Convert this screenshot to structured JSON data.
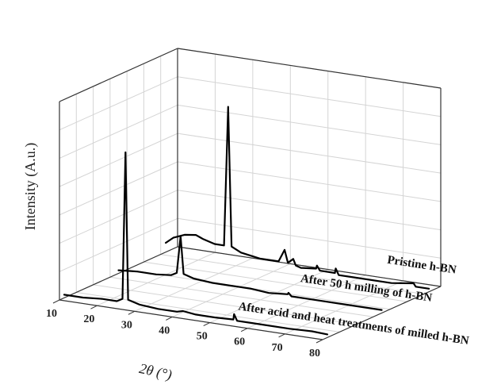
{
  "chart_data": {
    "type": "line",
    "style": "3d-waterfall",
    "xlabel": "2θ (°)",
    "ylabel": "Intensity (A.u.)",
    "xlim": [
      10,
      80
    ],
    "x_ticks": [
      10,
      20,
      30,
      40,
      50,
      60,
      70,
      80
    ],
    "grid": true,
    "series": [
      {
        "name": "After acid and heat treatments of milled h-BN",
        "color": "#000000",
        "points": [
          [
            10,
            0.02
          ],
          [
            15,
            0.02
          ],
          [
            20,
            0.03
          ],
          [
            24,
            0.03
          ],
          [
            25.5,
            0.05
          ],
          [
            26.3,
            1.0
          ],
          [
            27,
            0.05
          ],
          [
            30,
            0.03
          ],
          [
            35,
            0.02
          ],
          [
            40,
            0.02
          ],
          [
            41.6,
            0.03
          ],
          [
            45,
            0.02
          ],
          [
            50,
            0.02
          ],
          [
            55,
            0.025
          ],
          [
            55.2,
            0.06
          ],
          [
            56,
            0.02
          ],
          [
            60,
            0.02
          ],
          [
            70,
            0.02
          ],
          [
            75.9,
            0.025
          ],
          [
            80,
            0.02
          ]
        ]
      },
      {
        "name": "After 50 h milling of h-BN",
        "color": "#000000",
        "points": [
          [
            10,
            0.02
          ],
          [
            15,
            0.03
          ],
          [
            20,
            0.03
          ],
          [
            24,
            0.04
          ],
          [
            25.5,
            0.06
          ],
          [
            26.5,
            0.3
          ],
          [
            27.3,
            0.06
          ],
          [
            30,
            0.04
          ],
          [
            35,
            0.03
          ],
          [
            40,
            0.03
          ],
          [
            41.6,
            0.03
          ],
          [
            45,
            0.03
          ],
          [
            50,
            0.02
          ],
          [
            55,
            0.03
          ],
          [
            55.2,
            0.04
          ],
          [
            56,
            0.02
          ],
          [
            60,
            0.02
          ],
          [
            70,
            0.02
          ],
          [
            80,
            0.02
          ]
        ]
      },
      {
        "name": "Pristine h-BN",
        "color": "#000000",
        "points": [
          [
            10,
            0.06
          ],
          [
            12,
            0.1
          ],
          [
            15,
            0.13
          ],
          [
            18,
            0.14
          ],
          [
            20,
            0.12
          ],
          [
            23,
            0.1
          ],
          [
            25.5,
            0.1
          ],
          [
            26.6,
            1.0
          ],
          [
            27.5,
            0.1
          ],
          [
            30,
            0.07
          ],
          [
            35,
            0.05
          ],
          [
            40,
            0.05
          ],
          [
            41.6,
            0.13
          ],
          [
            42.5,
            0.05
          ],
          [
            43.9,
            0.08
          ],
          [
            44.6,
            0.04
          ],
          [
            46,
            0.03
          ],
          [
            50,
            0.04
          ],
          [
            50.2,
            0.06
          ],
          [
            51,
            0.03
          ],
          [
            55,
            0.03
          ],
          [
            55.2,
            0.06
          ],
          [
            56,
            0.02
          ],
          [
            60,
            0.02
          ],
          [
            70,
            0.02
          ],
          [
            75.9,
            0.04
          ],
          [
            76.5,
            0.02
          ],
          [
            80,
            0.02
          ]
        ]
      }
    ]
  }
}
